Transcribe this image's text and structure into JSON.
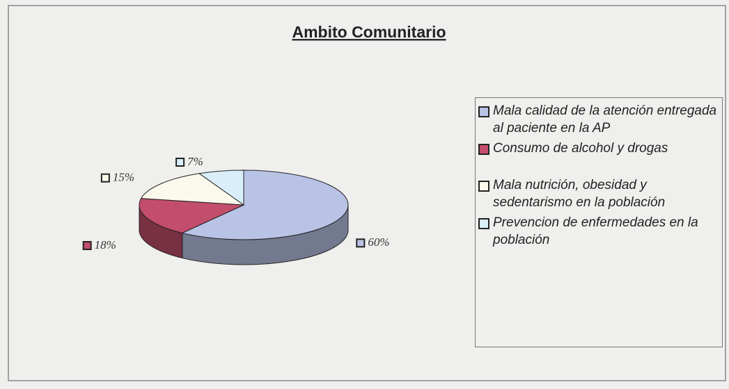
{
  "chart_data": {
    "type": "pie",
    "title": "Ambito Comunitario",
    "categories": [
      "Mala calidad de la atención entregada al paciente en la AP",
      "Consumo de alcohol y drogas",
      "Mala nutrición, obesidad y sedentarismo en la población",
      "Prevencion de enfermedades en la población"
    ],
    "values": [
      60,
      18,
      15,
      7
    ],
    "value_labels": [
      "60%",
      "18%",
      "15%",
      "7%"
    ],
    "colors": [
      "#b9c3e6",
      "#c24d6c",
      "#fbf9ec",
      "#d9eef8"
    ],
    "legend": "right"
  }
}
